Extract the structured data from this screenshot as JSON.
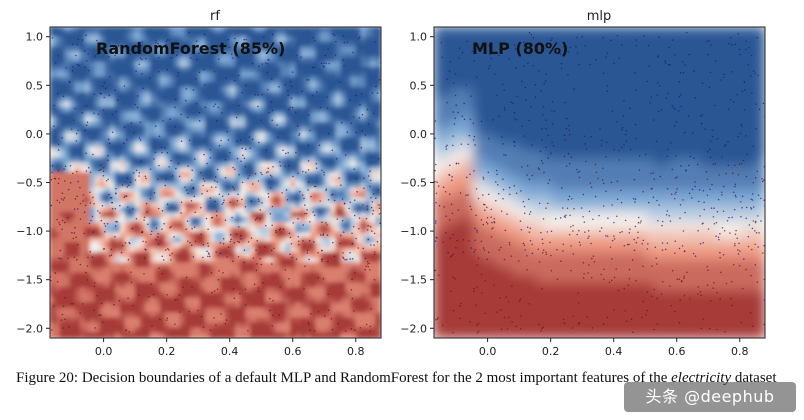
{
  "chart_data": [
    {
      "type": "heatmap",
      "subplot_title": "rf",
      "annotation": "RandomForest (85%)",
      "model": "RandomForest",
      "accuracy_pct": 85,
      "xlim": [
        -0.17,
        0.88
      ],
      "ylim": [
        -2.1,
        1.1
      ],
      "xticks": [
        0.0,
        0.2,
        0.4,
        0.6,
        0.8
      ],
      "yticks": [
        1.0,
        0.5,
        0.0,
        -0.5,
        -1.0,
        -1.5,
        -2.0
      ],
      "xtick_labels": [
        "0.0",
        "0.2",
        "0.4",
        "0.6",
        "0.8"
      ],
      "ytick_labels": [
        "1.0",
        "0.5",
        "0.0",
        "−0.5",
        "−1.0",
        "−1.5",
        "−2.0"
      ],
      "colormap": [
        "#2c5694",
        "#7aa6d3",
        "#f4f0ec",
        "#ee9a83",
        "#a63a38"
      ]
    },
    {
      "type": "heatmap",
      "subplot_title": "mlp",
      "annotation": "MLP (80%)",
      "model": "MLP",
      "accuracy_pct": 80,
      "xlim": [
        -0.17,
        0.88
      ],
      "ylim": [
        -2.1,
        1.1
      ],
      "xticks": [
        0.0,
        0.2,
        0.4,
        0.6,
        0.8
      ],
      "yticks": [
        1.0,
        0.5,
        0.0,
        -0.5,
        -1.0,
        -1.5,
        -2.0
      ],
      "xtick_labels": [
        "0.0",
        "0.2",
        "0.4",
        "0.6",
        "0.8"
      ],
      "ytick_labels": [
        "1.0",
        "0.5",
        "0.0",
        "−0.5",
        "−1.0",
        "−1.5",
        "−2.0"
      ],
      "colormap": [
        "#2c5694",
        "#7aa6d3",
        "#f4f0ec",
        "#ee9a83",
        "#a63a38"
      ]
    }
  ],
  "caption": {
    "prefix": "Figure 20: Decision boundaries of a default MLP and RandomForest for the 2 most important features of the ",
    "dataset": "electricity",
    "suffix": " dataset"
  },
  "watermark": "头条 @deephub"
}
